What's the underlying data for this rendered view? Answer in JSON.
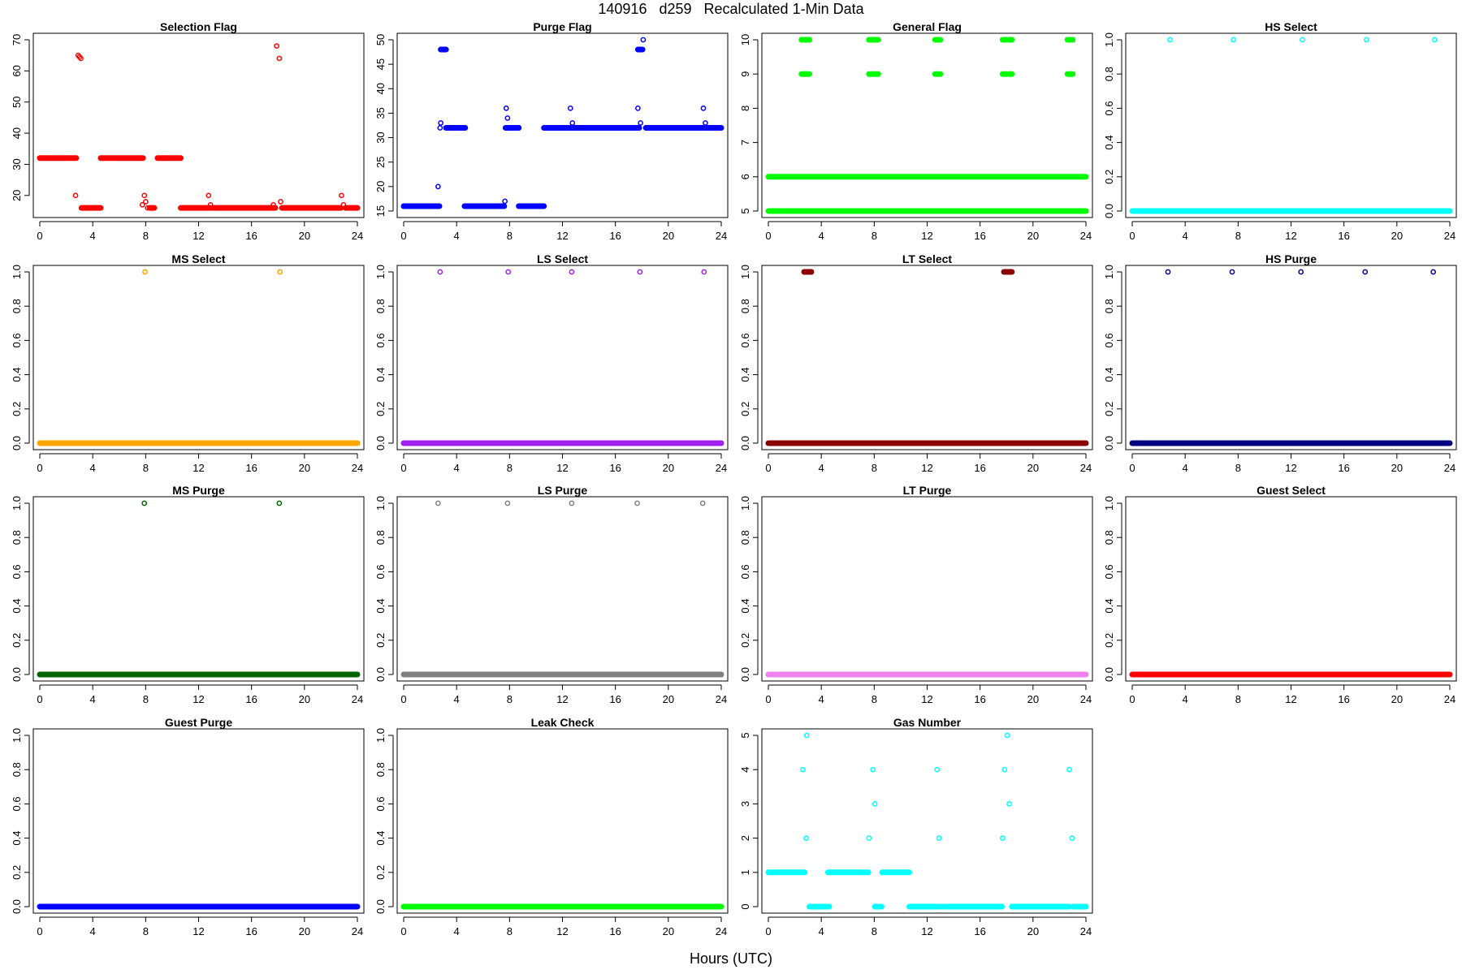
{
  "figure": {
    "title": "140916   d259   Recalculated 1-Min Data",
    "xlabel": "Hours (UTC)"
  },
  "chart_data": [
    {
      "type": "scatter",
      "title": "Selection Flag",
      "color": "#ff0000",
      "xlim": [
        0,
        24
      ],
      "ylim": [
        15,
        70
      ],
      "xticks": [
        0,
        4,
        8,
        12,
        16,
        20,
        24
      ],
      "yticks": [
        20,
        30,
        40,
        50,
        60,
        70
      ],
      "segments": [
        [
          0,
          2.75,
          32
        ],
        [
          3.15,
          4.6,
          16
        ],
        [
          4.6,
          7.8,
          32
        ],
        [
          8.3,
          8.65,
          16
        ],
        [
          8.9,
          10.65,
          32
        ],
        [
          10.65,
          12.9,
          16
        ],
        [
          13.05,
          17.8,
          16
        ],
        [
          18.3,
          22.75,
          16
        ],
        [
          23.1,
          24,
          16
        ]
      ],
      "points": [
        [
          2.7,
          20
        ],
        [
          2.9,
          65
        ],
        [
          3.0,
          64.5
        ],
        [
          3.1,
          64
        ],
        [
          7.75,
          17
        ],
        [
          7.9,
          20
        ],
        [
          8.0,
          18
        ],
        [
          8.15,
          16
        ],
        [
          12.75,
          20
        ],
        [
          12.9,
          17
        ],
        [
          17.65,
          17
        ],
        [
          17.9,
          68
        ],
        [
          18.1,
          64
        ],
        [
          18.2,
          18
        ],
        [
          22.8,
          20
        ],
        [
          22.95,
          17
        ]
      ]
    },
    {
      "type": "scatter",
      "title": "Purge Flag",
      "color": "#0000ff",
      "xlim": [
        0,
        24
      ],
      "ylim": [
        15,
        50
      ],
      "xticks": [
        0,
        4,
        8,
        12,
        16,
        20,
        24
      ],
      "yticks": [
        15,
        20,
        25,
        30,
        35,
        40,
        45,
        50
      ],
      "segments": [
        [
          0,
          2.7,
          16
        ],
        [
          2.8,
          3.2,
          48
        ],
        [
          3.2,
          4.65,
          32
        ],
        [
          4.6,
          7.6,
          16
        ],
        [
          7.7,
          8.7,
          32
        ],
        [
          8.7,
          10.6,
          16
        ],
        [
          10.6,
          17.8,
          32
        ],
        [
          17.7,
          18.05,
          48
        ],
        [
          18.3,
          24,
          32
        ]
      ],
      "points": [
        [
          2.6,
          20
        ],
        [
          2.75,
          32
        ],
        [
          2.8,
          33
        ],
        [
          7.65,
          17
        ],
        [
          7.75,
          36
        ],
        [
          7.85,
          34
        ],
        [
          12.6,
          36
        ],
        [
          12.75,
          33
        ],
        [
          17.7,
          36
        ],
        [
          17.9,
          33
        ],
        [
          18.1,
          50
        ],
        [
          22.65,
          36
        ],
        [
          22.8,
          33
        ]
      ]
    },
    {
      "type": "scatter",
      "title": "General Flag",
      "color": "#00ff00",
      "xlim": [
        0,
        24
      ],
      "ylim": [
        5,
        10
      ],
      "xticks": [
        0,
        4,
        8,
        12,
        16,
        20,
        24
      ],
      "yticks": [
        5,
        6,
        7,
        8,
        9,
        10
      ],
      "segments": [
        [
          0,
          24,
          5
        ],
        [
          0,
          24,
          6
        ],
        [
          2.5,
          3.1,
          10
        ],
        [
          2.5,
          3.1,
          9
        ],
        [
          7.6,
          8.3,
          10
        ],
        [
          7.6,
          8.3,
          9
        ],
        [
          12.6,
          13.0,
          10
        ],
        [
          12.6,
          13.0,
          9
        ],
        [
          17.7,
          18.0,
          10
        ],
        [
          17.7,
          18.0,
          9
        ],
        [
          18.2,
          18.4,
          10
        ],
        [
          18.2,
          18.4,
          9
        ],
        [
          22.6,
          23.0,
          10
        ],
        [
          22.6,
          23.0,
          9
        ]
      ],
      "points": []
    },
    {
      "type": "scatter",
      "title": "HS Select",
      "color": "#00ffff",
      "xlim": [
        0,
        24
      ],
      "ylim": [
        0,
        1
      ],
      "xticks": [
        0,
        4,
        8,
        12,
        16,
        20,
        24
      ],
      "yticks": [
        0.0,
        0.2,
        0.4,
        0.6,
        0.8,
        1.0
      ],
      "segments": [
        [
          0,
          24,
          0
        ]
      ],
      "points": [
        [
          2.85,
          1
        ],
        [
          7.65,
          1
        ],
        [
          12.85,
          1
        ],
        [
          17.7,
          1
        ],
        [
          22.85,
          1
        ]
      ]
    },
    {
      "type": "scatter",
      "title": "MS Select",
      "color": "#ffa500",
      "xlim": [
        0,
        24
      ],
      "ylim": [
        0,
        1
      ],
      "xticks": [
        0,
        4,
        8,
        12,
        16,
        20,
        24
      ],
      "yticks": [
        0.0,
        0.2,
        0.4,
        0.6,
        0.8,
        1.0
      ],
      "segments": [
        [
          0,
          24,
          0
        ]
      ],
      "points": [
        [
          7.95,
          1
        ],
        [
          18.15,
          1
        ]
      ]
    },
    {
      "type": "scatter",
      "title": "LS Select",
      "color": "#a020f0",
      "xlim": [
        0,
        24
      ],
      "ylim": [
        0,
        1
      ],
      "xticks": [
        0,
        4,
        8,
        12,
        16,
        20,
        24
      ],
      "yticks": [
        0.0,
        0.2,
        0.4,
        0.6,
        0.8,
        1.0
      ],
      "segments": [
        [
          0,
          24,
          0
        ]
      ],
      "points": [
        [
          2.75,
          1
        ],
        [
          7.9,
          1
        ],
        [
          12.7,
          1
        ],
        [
          17.85,
          1
        ],
        [
          22.7,
          1
        ]
      ]
    },
    {
      "type": "scatter",
      "title": "LT Select",
      "color": "#8b0000",
      "xlim": [
        0,
        24
      ],
      "ylim": [
        0,
        1
      ],
      "xticks": [
        0,
        4,
        8,
        12,
        16,
        20,
        24
      ],
      "yticks": [
        0.0,
        0.2,
        0.4,
        0.6,
        0.8,
        1.0
      ],
      "segments": [
        [
          0,
          24,
          0
        ],
        [
          2.7,
          3.25,
          1
        ],
        [
          17.8,
          18.4,
          1
        ]
      ],
      "points": []
    },
    {
      "type": "scatter",
      "title": "HS Purge",
      "color": "#000080",
      "xlim": [
        0,
        24
      ],
      "ylim": [
        0,
        1
      ],
      "xticks": [
        0,
        4,
        8,
        12,
        16,
        20,
        24
      ],
      "yticks": [
        0.0,
        0.2,
        0.4,
        0.6,
        0.8,
        1.0
      ],
      "segments": [
        [
          0,
          24,
          0
        ]
      ],
      "points": [
        [
          2.7,
          1
        ],
        [
          7.55,
          1
        ],
        [
          12.75,
          1
        ],
        [
          17.6,
          1
        ],
        [
          22.75,
          1
        ]
      ]
    },
    {
      "type": "scatter",
      "title": "MS Purge",
      "color": "#006400",
      "xlim": [
        0,
        24
      ],
      "ylim": [
        0,
        1
      ],
      "xticks": [
        0,
        4,
        8,
        12,
        16,
        20,
        24
      ],
      "yticks": [
        0.0,
        0.2,
        0.4,
        0.6,
        0.8,
        1.0
      ],
      "segments": [
        [
          0,
          24,
          0
        ]
      ],
      "points": [
        [
          7.9,
          1
        ],
        [
          18.1,
          1
        ]
      ]
    },
    {
      "type": "scatter",
      "title": "LS Purge",
      "color": "#808080",
      "xlim": [
        0,
        24
      ],
      "ylim": [
        0,
        1
      ],
      "xticks": [
        0,
        4,
        8,
        12,
        16,
        20,
        24
      ],
      "yticks": [
        0.0,
        0.2,
        0.4,
        0.6,
        0.8,
        1.0
      ],
      "segments": [
        [
          0,
          24,
          0
        ]
      ],
      "points": [
        [
          2.6,
          1
        ],
        [
          7.85,
          1
        ],
        [
          12.7,
          1
        ],
        [
          17.65,
          1
        ],
        [
          22.6,
          1
        ]
      ]
    },
    {
      "type": "scatter",
      "title": "LT Purge",
      "color": "#ee82ee",
      "xlim": [
        0,
        24
      ],
      "ylim": [
        0,
        1
      ],
      "xticks": [
        0,
        4,
        8,
        12,
        16,
        20,
        24
      ],
      "yticks": [
        0.0,
        0.2,
        0.4,
        0.6,
        0.8,
        1.0
      ],
      "segments": [
        [
          0,
          24,
          0
        ]
      ],
      "points": []
    },
    {
      "type": "scatter",
      "title": "Guest Select",
      "color": "#ff0000",
      "xlim": [
        0,
        24
      ],
      "ylim": [
        0,
        1
      ],
      "xticks": [
        0,
        4,
        8,
        12,
        16,
        20,
        24
      ],
      "yticks": [
        0.0,
        0.2,
        0.4,
        0.6,
        0.8,
        1.0
      ],
      "segments": [
        [
          0,
          24,
          0
        ]
      ],
      "points": []
    },
    {
      "type": "scatter",
      "title": "Guest Purge",
      "color": "#0000ff",
      "xlim": [
        0,
        24
      ],
      "ylim": [
        0,
        1
      ],
      "xticks": [
        0,
        4,
        8,
        12,
        16,
        20,
        24
      ],
      "yticks": [
        0.0,
        0.2,
        0.4,
        0.6,
        0.8,
        1.0
      ],
      "segments": [
        [
          0,
          24,
          0
        ]
      ],
      "points": []
    },
    {
      "type": "scatter",
      "title": "Leak Check",
      "color": "#00ff00",
      "xlim": [
        0,
        24
      ],
      "ylim": [
        0,
        1
      ],
      "xticks": [
        0,
        4,
        8,
        12,
        16,
        20,
        24
      ],
      "yticks": [
        0.0,
        0.2,
        0.4,
        0.6,
        0.8,
        1.0
      ],
      "segments": [
        [
          0,
          24,
          0
        ]
      ],
      "points": []
    },
    {
      "type": "scatter",
      "title": "Gas Number",
      "color": "#00ffff",
      "xlim": [
        0,
        24
      ],
      "ylim": [
        0,
        5
      ],
      "xticks": [
        0,
        4,
        8,
        12,
        16,
        20,
        24
      ],
      "yticks": [
        0,
        1,
        2,
        3,
        4,
        5
      ],
      "segments": [
        [
          0,
          2.75,
          1
        ],
        [
          3.1,
          4.6,
          0
        ],
        [
          4.5,
          7.55,
          1
        ],
        [
          8.05,
          8.55,
          0
        ],
        [
          8.6,
          10.65,
          1
        ],
        [
          10.65,
          12.75,
          0
        ],
        [
          12.95,
          17.65,
          0
        ],
        [
          18.4,
          22.7,
          0
        ],
        [
          23.0,
          24,
          0
        ]
      ],
      "points": [
        [
          2.6,
          4
        ],
        [
          2.9,
          5
        ],
        [
          2.85,
          2
        ],
        [
          7.6,
          2
        ],
        [
          7.9,
          4
        ],
        [
          8.05,
          3
        ],
        [
          12.75,
          4
        ],
        [
          12.9,
          2
        ],
        [
          17.7,
          2
        ],
        [
          17.85,
          4
        ],
        [
          18.05,
          5
        ],
        [
          18.2,
          3
        ],
        [
          22.75,
          4
        ],
        [
          22.95,
          2
        ]
      ]
    }
  ]
}
